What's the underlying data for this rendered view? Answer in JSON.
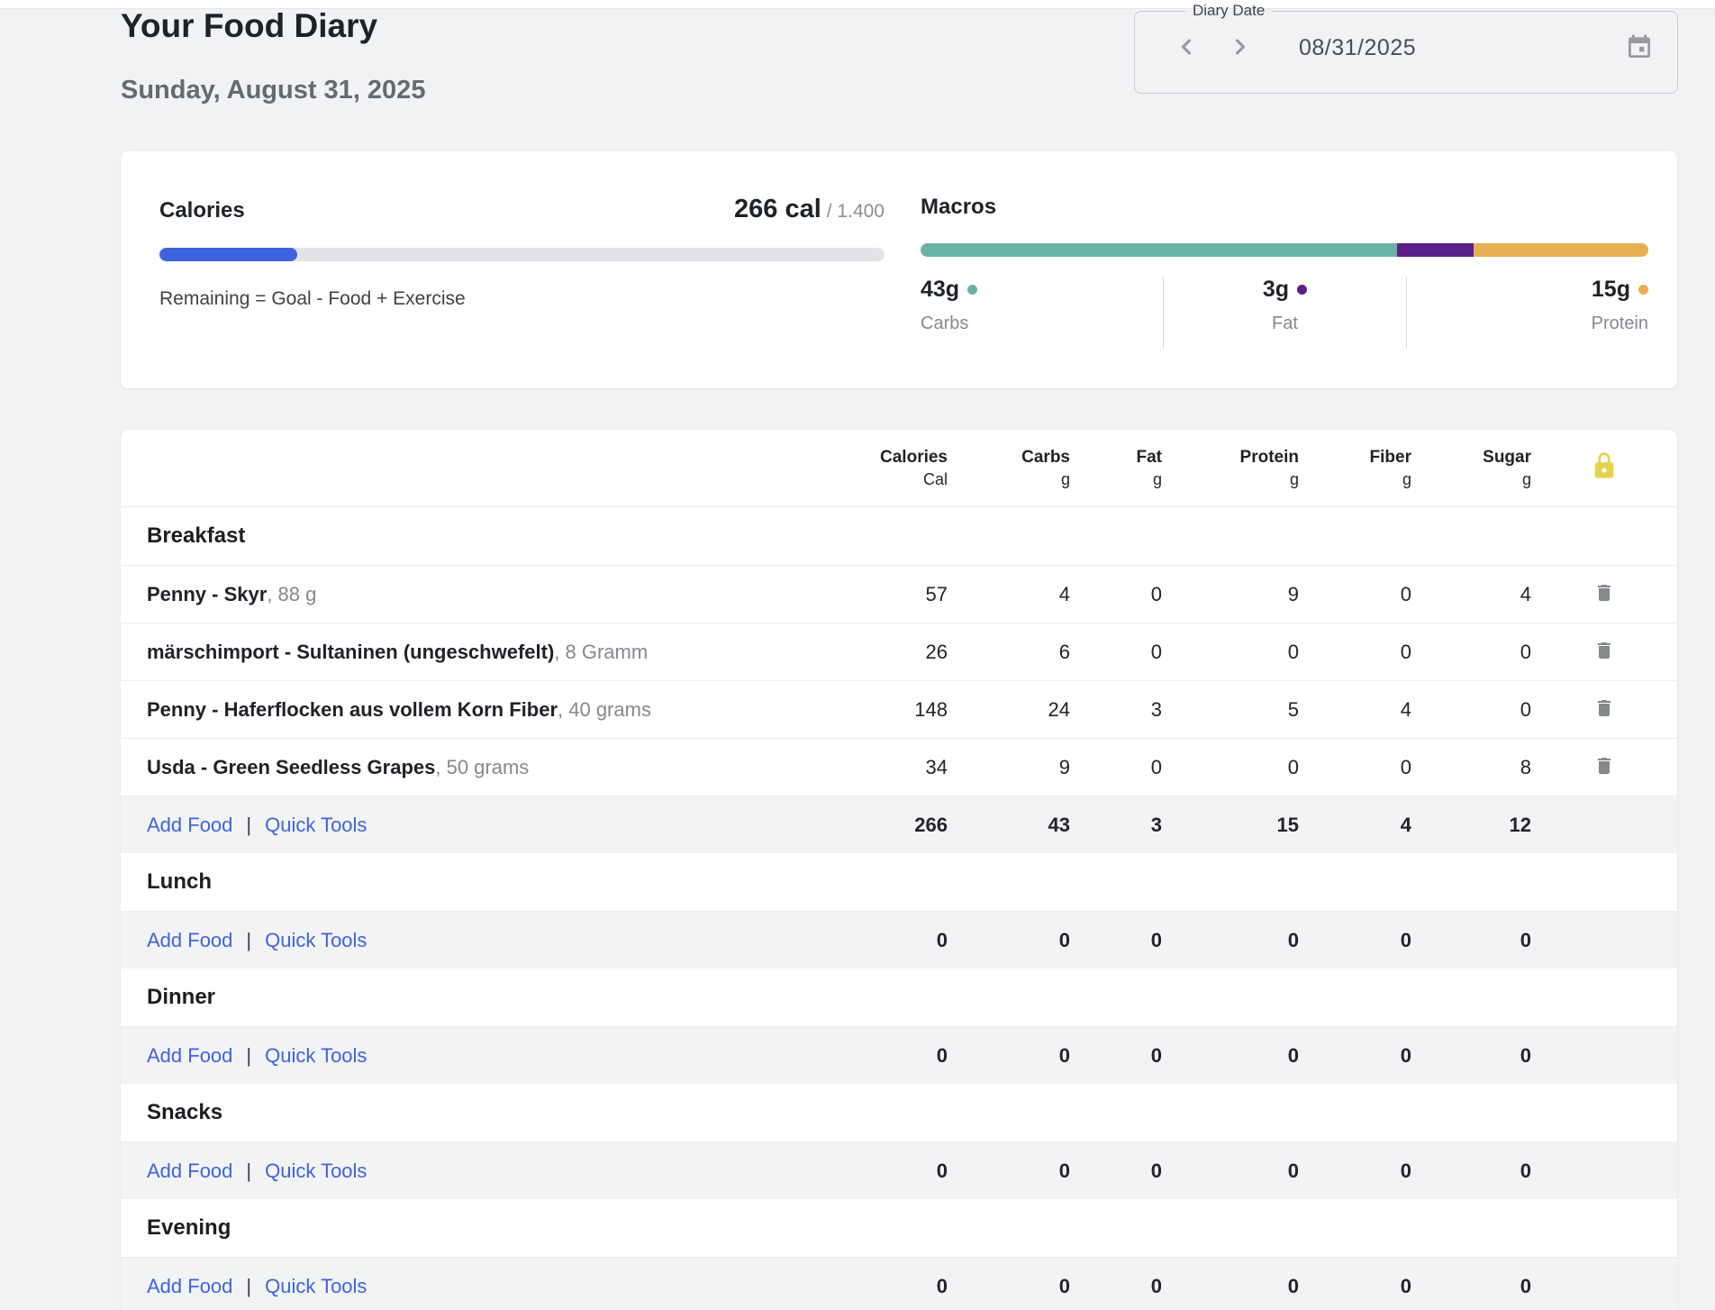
{
  "page": {
    "title": "Your Food Diary",
    "date_display": "Sunday, August 31, 2025"
  },
  "diary_date": {
    "label": "Diary Date",
    "value": "08/31/2025"
  },
  "colors": {
    "accent_blue": "#3e63dd",
    "carbs_teal": "#6ab1a8",
    "fat_purple": "#5c2189",
    "protein_amber": "#e6af54",
    "lock_yellow": "#e7d34b"
  },
  "summary": {
    "calories": {
      "heading": "Calories",
      "consumed": "266 cal",
      "goal_display": "/ 1.400",
      "progress_pct": 19,
      "note": "Remaining = Goal - Food + Exercise"
    },
    "macros": {
      "heading": "Macros",
      "segments": [
        {
          "name": "Carbs",
          "value": "43g",
          "pct": 65.5,
          "color": "#6ab1a8"
        },
        {
          "name": "Fat",
          "value": "3g",
          "pct": 10.5,
          "color": "#5c2189"
        },
        {
          "name": "Protein",
          "value": "15g",
          "pct": 24,
          "color": "#e6af54"
        }
      ]
    }
  },
  "table": {
    "columns": [
      {
        "label": "Calories",
        "unit": "Cal"
      },
      {
        "label": "Carbs",
        "unit": "g"
      },
      {
        "label": "Fat",
        "unit": "g"
      },
      {
        "label": "Protein",
        "unit": "g"
      },
      {
        "label": "Fiber",
        "unit": "g"
      },
      {
        "label": "Sugar",
        "unit": "g"
      }
    ],
    "add_food_label": "Add Food",
    "quick_tools_label": "Quick Tools",
    "link_separator": "|",
    "meals": [
      {
        "name": "Breakfast",
        "items": [
          {
            "food": "Penny - Skyr",
            "portion": ", 88 g",
            "values": [
              "57",
              "4",
              "0",
              "9",
              "0",
              "4"
            ]
          },
          {
            "food": "märschimport - Sultaninen (ungeschwefelt)",
            "portion": ", 8 Gramm",
            "values": [
              "26",
              "6",
              "0",
              "0",
              "0",
              "0"
            ]
          },
          {
            "food": "Penny - Haferflocken aus vollem Korn Fiber",
            "portion": ", 40 grams",
            "values": [
              "148",
              "24",
              "3",
              "5",
              "4",
              "0"
            ]
          },
          {
            "food": "Usda - Green Seedless Grapes",
            "portion": ", 50 grams",
            "values": [
              "34",
              "9",
              "0",
              "0",
              "0",
              "8"
            ]
          }
        ],
        "totals": [
          "266",
          "43",
          "3",
          "15",
          "4",
          "12"
        ]
      },
      {
        "name": "Lunch",
        "items": [],
        "totals": [
          "0",
          "0",
          "0",
          "0",
          "0",
          "0"
        ]
      },
      {
        "name": "Dinner",
        "items": [],
        "totals": [
          "0",
          "0",
          "0",
          "0",
          "0",
          "0"
        ]
      },
      {
        "name": "Snacks",
        "items": [],
        "totals": [
          "0",
          "0",
          "0",
          "0",
          "0",
          "0"
        ]
      },
      {
        "name": "Evening",
        "items": [],
        "totals": [
          "0",
          "0",
          "0",
          "0",
          "0",
          "0"
        ]
      }
    ]
  }
}
